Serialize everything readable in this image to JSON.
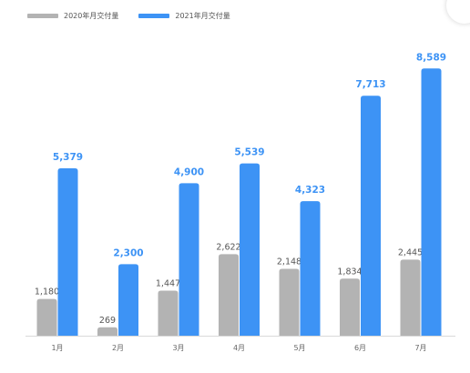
{
  "chart_data": {
    "type": "bar",
    "categories": [
      "1月",
      "2月",
      "3月",
      "4月",
      "5月",
      "6月",
      "7月"
    ],
    "series": [
      {
        "name": "2020年月交付量",
        "values": [
          1180,
          269,
          1447,
          2622,
          2148,
          1834,
          2445
        ],
        "color": "#b3b3b3"
      },
      {
        "name": "2021年月交付量",
        "values": [
          5379,
          2300,
          4900,
          5539,
          4323,
          7713,
          8589
        ],
        "color": "#3d93f5"
      }
    ],
    "data_labels": {
      "2020年月交付量": [
        "1,180",
        "269",
        "1,447",
        "2,622",
        "2,148",
        "1,834",
        "2,445"
      ],
      "2021年月交付量": [
        "5,379",
        "2,300",
        "4,900",
        "5,539",
        "4,323",
        "7,713",
        "8,589"
      ]
    },
    "ylim": [
      0,
      9000
    ],
    "grid": false,
    "legend": "top-left"
  }
}
